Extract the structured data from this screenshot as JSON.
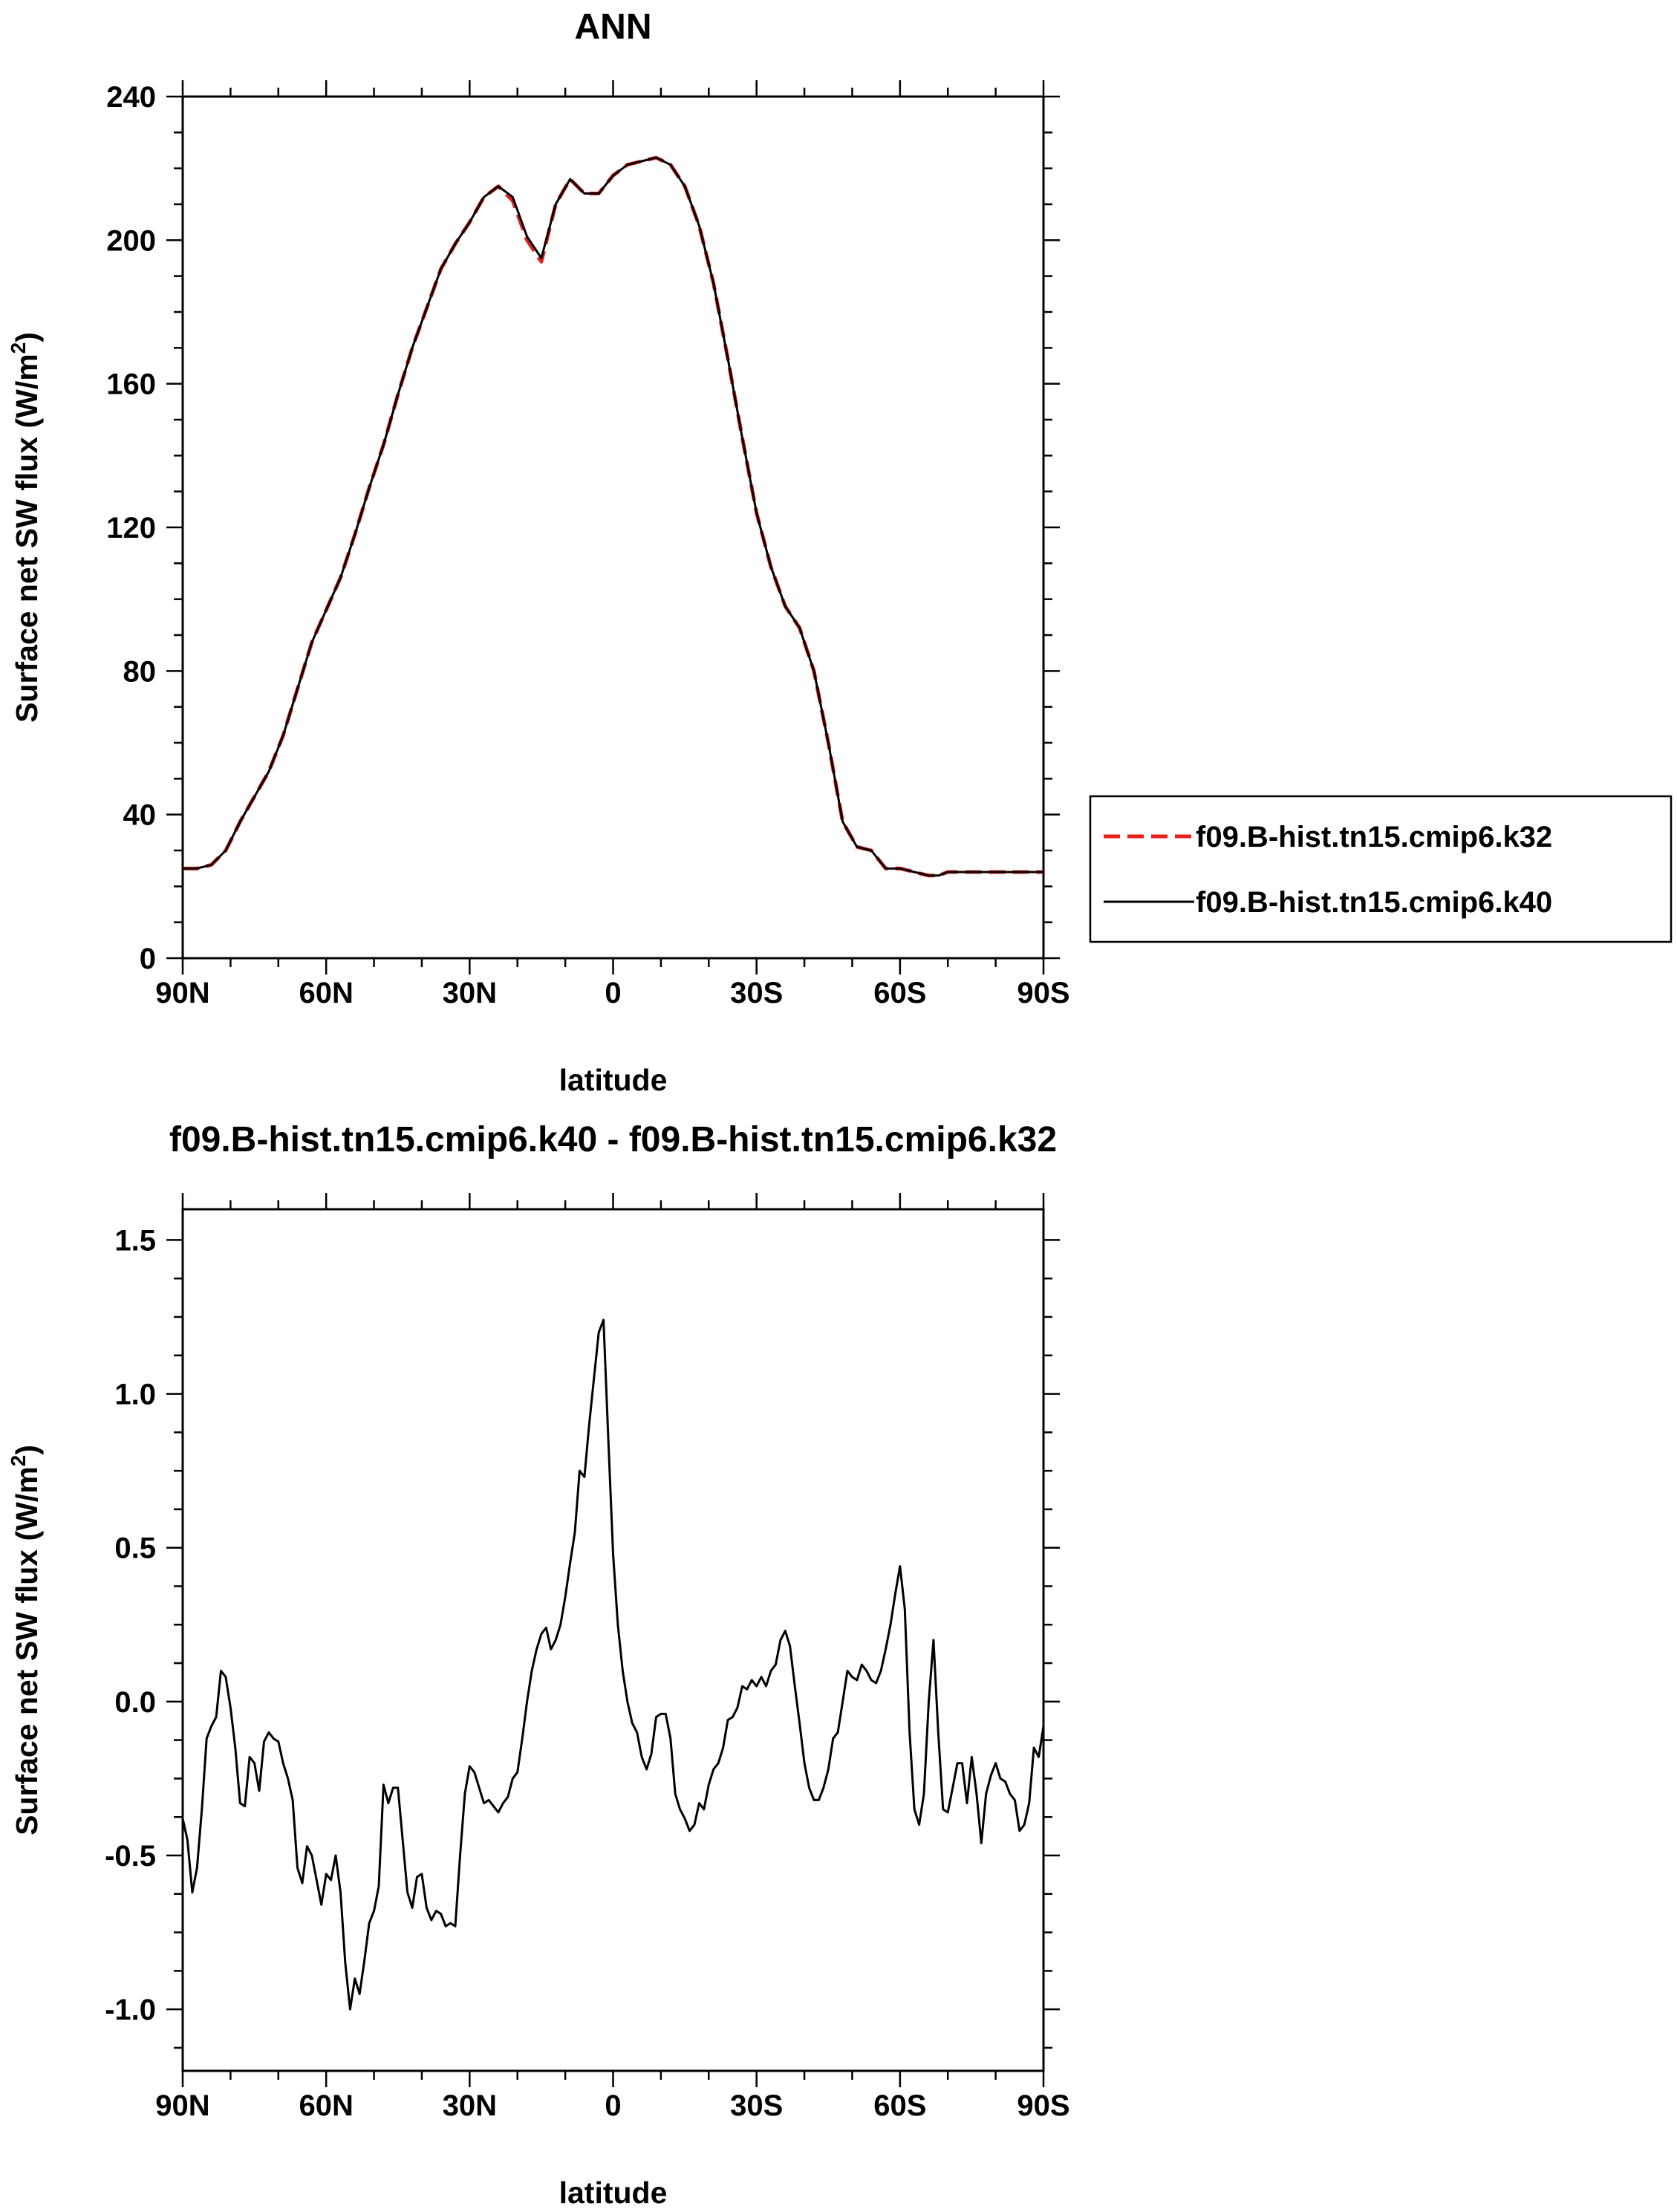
{
  "chart_data": [
    {
      "type": "line",
      "title": "ANN",
      "xlabel": "latitude",
      "ylabel": "Surface net SW flux (W/m",
      "ylabel_sup": "2",
      "ylabel_end": ")",
      "xlim": [
        90,
        -90
      ],
      "ylim": [
        0,
        240
      ],
      "x_ticks": [
        {
          "value": 90,
          "label": "90N"
        },
        {
          "value": 60,
          "label": "60N"
        },
        {
          "value": 30,
          "label": "30N"
        },
        {
          "value": 0,
          "label": "0"
        },
        {
          "value": -30,
          "label": "30S"
        },
        {
          "value": -60,
          "label": "60S"
        },
        {
          "value": -90,
          "label": "90S"
        }
      ],
      "y_ticks": [
        {
          "value": 0,
          "label": "0"
        },
        {
          "value": 40,
          "label": "40"
        },
        {
          "value": 80,
          "label": "80"
        },
        {
          "value": 120,
          "label": "120"
        },
        {
          "value": 160,
          "label": "160"
        },
        {
          "value": 200,
          "label": "200"
        },
        {
          "value": 240,
          "label": "240"
        }
      ],
      "legend_position": "right",
      "grid": false,
      "series": [
        {
          "name": "f09.B-hist.tn15.cmip6.k32",
          "color": "#e8211a",
          "dash": "dashed",
          "x": [
            90,
            87,
            84,
            81,
            78,
            75,
            72,
            69,
            66,
            63,
            60,
            57,
            54,
            51,
            48,
            45,
            42,
            39,
            36,
            33,
            30,
            27,
            24,
            21,
            18,
            15,
            12,
            9,
            6,
            3,
            0,
            -3,
            -6,
            -9,
            -12,
            -15,
            -18,
            -21,
            -24,
            -27,
            -30,
            -33,
            -36,
            -39,
            -42,
            -45,
            -48,
            -51,
            -54,
            -57,
            -60,
            -63,
            -66,
            -68,
            -70,
            -72,
            -75,
            -78,
            -81,
            -84,
            -87,
            -90
          ],
          "values": [
            25,
            25,
            26,
            30,
            38,
            45,
            52,
            62,
            75,
            88,
            97,
            106,
            118,
            131,
            143,
            157,
            170,
            181,
            192,
            199,
            205,
            212,
            215,
            211,
            200,
            194,
            210,
            217,
            213,
            213,
            218,
            221,
            222,
            223,
            221,
            215,
            204,
            188,
            167,
            145,
            124,
            109,
            98,
            92,
            80,
            60,
            38,
            31,
            30,
            25,
            25,
            24,
            23,
            23,
            24,
            24,
            24,
            24,
            24,
            24,
            24,
            24
          ]
        },
        {
          "name": "f09.B-hist.tn15.cmip6.k40",
          "color": "#000000",
          "dash": "solid",
          "x": [
            90,
            87,
            84,
            81,
            78,
            75,
            72,
            69,
            66,
            63,
            60,
            57,
            54,
            51,
            48,
            45,
            42,
            39,
            36,
            33,
            30,
            27,
            24,
            21,
            18,
            15,
            12,
            9,
            6,
            3,
            0,
            -3,
            -6,
            -9,
            -12,
            -15,
            -18,
            -21,
            -24,
            -27,
            -30,
            -33,
            -36,
            -39,
            -42,
            -45,
            -48,
            -51,
            -54,
            -57,
            -60,
            -63,
            -66,
            -68,
            -70,
            -72,
            -75,
            -78,
            -81,
            -84,
            -87,
            -90
          ],
          "values": [
            25,
            25,
            26,
            30,
            38,
            45,
            52,
            62,
            75,
            88,
            97,
            106,
            118,
            131,
            143,
            157,
            170,
            181,
            192,
            199,
            205,
            212,
            215,
            212,
            201,
            195,
            210,
            217,
            213,
            213,
            218,
            221,
            222,
            223,
            221,
            215,
            204,
            188,
            167,
            145,
            124,
            109,
            98,
            92,
            80,
            60,
            38,
            31,
            30,
            25,
            25,
            24,
            23,
            23,
            24,
            24,
            24,
            24,
            24,
            24,
            24,
            24
          ]
        }
      ]
    },
    {
      "type": "line",
      "title": "f09.B-hist.tn15.cmip6.k40 - f09.B-hist.tn15.cmip6.k32",
      "xlabel": "latitude",
      "ylabel": "Surface net SW flux (W/m",
      "ylabel_sup": "2",
      "ylabel_end": ")",
      "xlim": [
        90,
        -90
      ],
      "ylim": [
        -1.2,
        1.6
      ],
      "x_ticks": [
        {
          "value": 90,
          "label": "90N"
        },
        {
          "value": 60,
          "label": "60N"
        },
        {
          "value": 30,
          "label": "30N"
        },
        {
          "value": 0,
          "label": "0"
        },
        {
          "value": -30,
          "label": "30S"
        },
        {
          "value": -60,
          "label": "60S"
        },
        {
          "value": -90,
          "label": "90S"
        }
      ],
      "y_ticks": [
        {
          "value": -1.0,
          "label": "-1.0"
        },
        {
          "value": -0.5,
          "label": "-0.5"
        },
        {
          "value": 0.0,
          "label": "0.0"
        },
        {
          "value": 0.5,
          "label": "0.5"
        },
        {
          "value": 1.0,
          "label": "1.0"
        },
        {
          "value": 1.5,
          "label": "1.5"
        }
      ],
      "grid": false,
      "series": [
        {
          "color": "#000000",
          "dash": "solid",
          "x": [
            90,
            89,
            88,
            87,
            86,
            85,
            84,
            83,
            82,
            81,
            80,
            79,
            78,
            77,
            76,
            75,
            74,
            73,
            72,
            71,
            70,
            69,
            68,
            67,
            66,
            65,
            64,
            63,
            62,
            61,
            60,
            59,
            58,
            57,
            56,
            55,
            54,
            53,
            52,
            51,
            50,
            49,
            48,
            47,
            46,
            45,
            44,
            43,
            42,
            41,
            40,
            39,
            38,
            37,
            36,
            35,
            34,
            33,
            32,
            31,
            30,
            29,
            28,
            27,
            26,
            25,
            24,
            23,
            22,
            21,
            20,
            19,
            18,
            17,
            16,
            15,
            14,
            13,
            12,
            11,
            10,
            9,
            8,
            7,
            6,
            5,
            4,
            3,
            2,
            1,
            0,
            -1,
            -2,
            -3,
            -4,
            -5,
            -6,
            -7,
            -8,
            -9,
            -10,
            -11,
            -12,
            -13,
            -14,
            -15,
            -16,
            -17,
            -18,
            -19,
            -20,
            -21,
            -22,
            -23,
            -24,
            -25,
            -26,
            -27,
            -28,
            -29,
            -30,
            -31,
            -32,
            -33,
            -34,
            -35,
            -36,
            -37,
            -38,
            -39,
            -40,
            -41,
            -42,
            -43,
            -44,
            -45,
            -46,
            -47,
            -48,
            -49,
            -50,
            -51,
            -52,
            -53,
            -54,
            -55,
            -56,
            -57,
            -58,
            -59,
            -60,
            -61,
            -62,
            -63,
            -64,
            -65,
            -66,
            -67,
            -68,
            -69,
            -70,
            -71,
            -72,
            -73,
            -74,
            -75,
            -76,
            -77,
            -78,
            -79,
            -80,
            -81,
            -82,
            -83,
            -84,
            -85,
            -86,
            -87,
            -88,
            -89,
            -90
          ],
          "values": [
            -0.38,
            -0.45,
            -0.62,
            -0.54,
            -0.35,
            -0.12,
            -0.08,
            -0.05,
            0.1,
            0.08,
            -0.02,
            -0.15,
            -0.33,
            -0.34,
            -0.18,
            -0.2,
            -0.29,
            -0.13,
            -0.1,
            -0.12,
            -0.13,
            -0.2,
            -0.25,
            -0.32,
            -0.54,
            -0.59,
            -0.47,
            -0.5,
            -0.58,
            -0.66,
            -0.56,
            -0.58,
            -0.5,
            -0.62,
            -0.85,
            -1.0,
            -0.9,
            -0.95,
            -0.84,
            -0.72,
            -0.68,
            -0.6,
            -0.27,
            -0.33,
            -0.28,
            -0.28,
            -0.45,
            -0.62,
            -0.67,
            -0.57,
            -0.56,
            -0.67,
            -0.71,
            -0.68,
            -0.69,
            -0.73,
            -0.72,
            -0.73,
            -0.5,
            -0.3,
            -0.21,
            -0.23,
            -0.28,
            -0.33,
            -0.32,
            -0.34,
            -0.36,
            -0.33,
            -0.31,
            -0.25,
            -0.23,
            -0.12,
            0.0,
            0.1,
            0.17,
            0.22,
            0.24,
            0.17,
            0.2,
            0.25,
            0.34,
            0.45,
            0.55,
            0.75,
            0.73,
            0.9,
            1.05,
            1.2,
            1.24,
            0.85,
            0.48,
            0.25,
            0.1,
            0.0,
            -0.07,
            -0.1,
            -0.18,
            -0.22,
            -0.17,
            -0.05,
            -0.04,
            -0.04,
            -0.12,
            -0.3,
            -0.35,
            -0.38,
            -0.42,
            -0.4,
            -0.33,
            -0.35,
            -0.27,
            -0.22,
            -0.2,
            -0.15,
            -0.06,
            -0.05,
            -0.02,
            0.05,
            0.04,
            0.07,
            0.05,
            0.08,
            0.05,
            0.1,
            0.12,
            0.2,
            0.23,
            0.18,
            0.05,
            -0.07,
            -0.2,
            -0.28,
            -0.32,
            -0.32,
            -0.28,
            -0.22,
            -0.12,
            -0.1,
            0.0,
            0.1,
            0.08,
            0.07,
            0.12,
            0.1,
            0.07,
            0.06,
            0.1,
            0.17,
            0.25,
            0.35,
            0.44,
            0.3,
            -0.1,
            -0.35,
            -0.4,
            -0.3,
            0.0,
            0.2,
            -0.1,
            -0.35,
            -0.36,
            -0.28,
            -0.2,
            -0.2,
            -0.33,
            -0.18,
            -0.3,
            -0.46,
            -0.3,
            -0.24,
            -0.2,
            -0.25,
            -0.26,
            -0.3,
            -0.32,
            -0.42,
            -0.4,
            -0.33,
            -0.15,
            -0.18,
            -0.08
          ]
        }
      ]
    }
  ]
}
